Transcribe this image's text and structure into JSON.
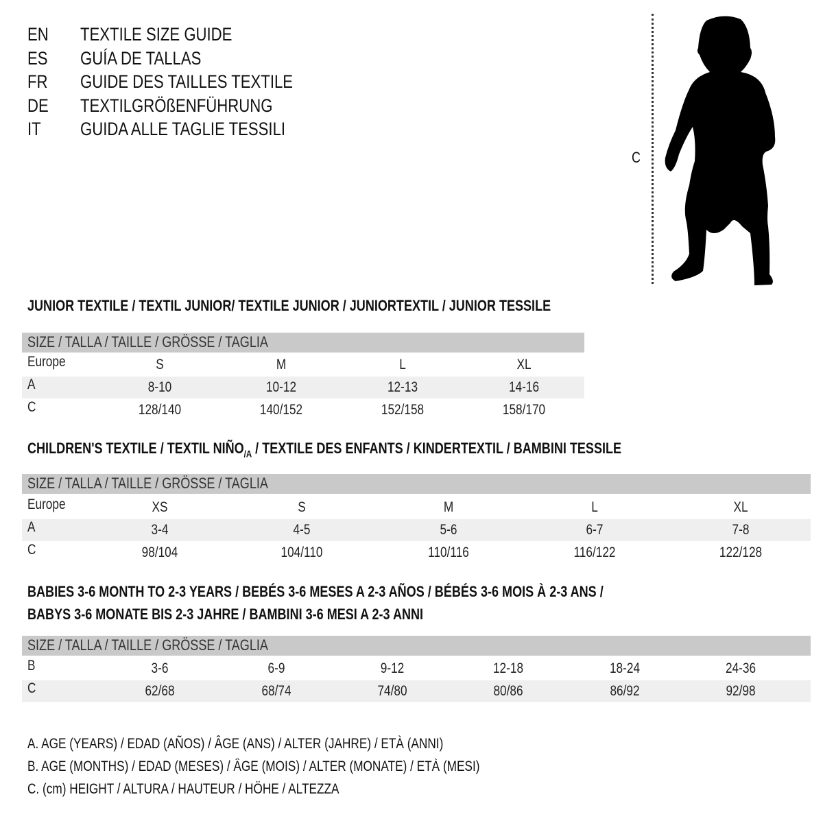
{
  "titles": [
    {
      "code": "EN",
      "text": "TEXTILE SIZE GUIDE"
    },
    {
      "code": "ES",
      "text": "GUÍA DE TALLAS"
    },
    {
      "code": "FR",
      "text": "GUIDE DES TAILLES TEXTILE"
    },
    {
      "code": "DE",
      "text": "TEXTILGRÖßENFÜHRUNG"
    },
    {
      "code": "IT",
      "text": "GUIDA ALLE TAGLIE TESSILI"
    }
  ],
  "figure": {
    "height_label": "C",
    "icon": "baby-silhouette-icon"
  },
  "size_header": "SIZE / TALLA / TAILLE / GRÖSSE / TAGLIA",
  "junior": {
    "heading": "JUNIOR TEXTILE / TEXTIL JUNIOR/ TEXTILE JUNIOR / JUNIORTEXTIL / JUNIOR TESSILE",
    "rows": [
      {
        "label": "Europe",
        "values": [
          "S",
          "M",
          "L",
          "XL"
        ]
      },
      {
        "label": "A",
        "values": [
          "8-10",
          "10-12",
          "12-13",
          "14-16"
        ]
      },
      {
        "label": "C",
        "values": [
          "128/140",
          "140/152",
          "152/158",
          "158/170"
        ]
      }
    ]
  },
  "children": {
    "heading_a": "CHILDREN'S TEXTILE / TEXTIL NIÑO",
    "heading_sub": "/A",
    "heading_b": " / TEXTILE DES ENFANTS / KINDERTEXTIL / BAMBINI TESSILE",
    "rows": [
      {
        "label": "Europe",
        "values": [
          "XS",
          "S",
          "M",
          "L",
          "XL"
        ]
      },
      {
        "label": "A",
        "values": [
          "3-4",
          "4-5",
          "5-6",
          "6-7",
          "7-8"
        ]
      },
      {
        "label": "C",
        "values": [
          "98/104",
          "104/110",
          "110/116",
          "116/122",
          "122/128"
        ]
      }
    ]
  },
  "babies": {
    "heading_1": "BABIES 3-6 MONTH TO 2-3 YEARS / BEBÉS 3-6 MESES A 2-3 AÑOS / BÉBÉS 3-6 MOIS À 2-3 ANS /",
    "heading_2": "BABYS 3-6 MONATE BIS 2-3 JAHRE / BAMBINI 3-6 MESI A 2-3 ANNI",
    "rows": [
      {
        "label": "B",
        "values": [
          "3-6",
          "6-9",
          "9-12",
          "12-18",
          "18-24",
          "24-36"
        ]
      },
      {
        "label": "C",
        "values": [
          "62/68",
          "68/74",
          "74/80",
          "80/86",
          "86/92",
          "92/98"
        ]
      }
    ]
  },
  "legend": [
    "A. AGE (YEARS) / EDAD (AÑOS) / ÂGE (ANS) / ALTER (JAHRE) / ETÀ (ANNI)",
    "B. AGE (MONTHS) / EDAD (MESES) / ÂGE (MOIS) / ALTER (MONATE) / ETÀ (MESI)",
    "C. (cm) HEIGHT / ALTURA / HAUTEUR / HÖHE / ALTEZZA"
  ],
  "colors": {
    "header_bar": "#c9c9c9",
    "row_shade": "#efefef"
  }
}
